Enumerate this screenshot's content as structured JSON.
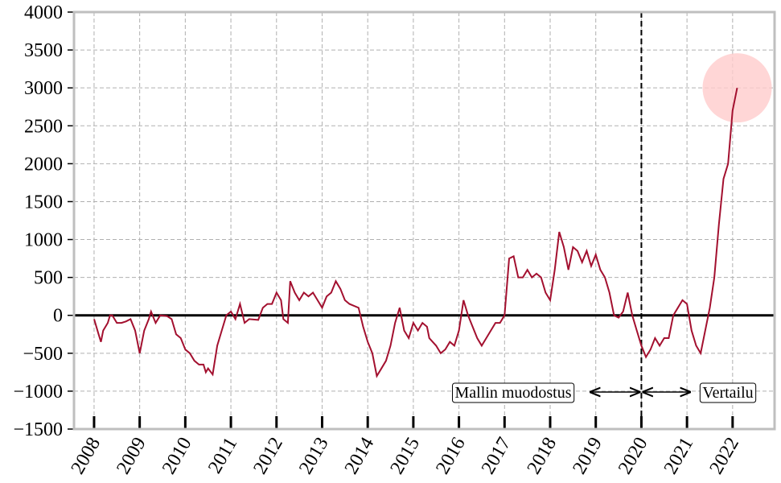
{
  "chart_data": {
    "type": "line",
    "x": [
      2008.0,
      2008.1,
      2008.15,
      2008.2,
      2008.3,
      2008.35,
      2008.4,
      2008.5,
      2008.6,
      2008.7,
      2008.8,
      2008.9,
      2009.0,
      2009.1,
      2009.2,
      2009.25,
      2009.35,
      2009.45,
      2009.6,
      2009.7,
      2009.8,
      2009.9,
      2010.0,
      2010.1,
      2010.2,
      2010.3,
      2010.4,
      2010.45,
      2010.5,
      2010.6,
      2010.7,
      2010.8,
      2010.9,
      2011.0,
      2011.1,
      2011.2,
      2011.3,
      2011.4,
      2011.6,
      2011.7,
      2011.8,
      2011.9,
      2012.0,
      2012.1,
      2012.15,
      2012.25,
      2012.3,
      2012.4,
      2012.5,
      2012.6,
      2012.7,
      2012.8,
      2012.9,
      2013.0,
      2013.1,
      2013.2,
      2013.3,
      2013.4,
      2013.5,
      2013.6,
      2013.8,
      2013.9,
      2014.0,
      2014.1,
      2014.2,
      2014.3,
      2014.4,
      2014.5,
      2014.6,
      2014.7,
      2014.8,
      2014.9,
      2015.0,
      2015.1,
      2015.2,
      2015.3,
      2015.35,
      2015.5,
      2015.6,
      2015.7,
      2015.8,
      2015.9,
      2016.0,
      2016.1,
      2016.2,
      2016.3,
      2016.4,
      2016.5,
      2016.6,
      2016.8,
      2016.9,
      2017.0,
      2017.1,
      2017.2,
      2017.3,
      2017.4,
      2017.5,
      2017.6,
      2017.7,
      2017.8,
      2017.9,
      2018.0,
      2018.1,
      2018.2,
      2018.3,
      2018.4,
      2018.5,
      2018.6,
      2018.7,
      2018.8,
      2018.9,
      2019.0,
      2019.1,
      2019.2,
      2019.3,
      2019.4,
      2019.5,
      2019.6,
      2019.7,
      2019.8,
      2019.9,
      2020.0,
      2020.1,
      2020.2,
      2020.3,
      2020.4,
      2020.5,
      2020.6,
      2020.7,
      2020.8,
      2020.9,
      2021.0,
      2021.1,
      2021.2,
      2021.3,
      2021.4,
      2021.5,
      2021.6,
      2021.7,
      2021.8,
      2021.9,
      2022.0,
      2022.1
    ],
    "series": [
      {
        "color": "#a3102f",
        "values": [
          -50,
          -250,
          -350,
          -200,
          -100,
          0,
          0,
          -100,
          -100,
          -80,
          -50,
          -200,
          -500,
          -200,
          -50,
          50,
          -100,
          0,
          -10,
          -50,
          -250,
          -300,
          -450,
          -500,
          -600,
          -650,
          -650,
          -750,
          -700,
          -780,
          -400,
          -200,
          0,
          50,
          -50,
          150,
          -100,
          -50,
          -60,
          100,
          150,
          150,
          300,
          200,
          -50,
          -100,
          450,
          300,
          200,
          300,
          250,
          300,
          200,
          100,
          250,
          300,
          450,
          350,
          200,
          150,
          100,
          -150,
          -350,
          -500,
          -800,
          -700,
          -600,
          -400,
          -100,
          100,
          -200,
          -300,
          -100,
          -200,
          -100,
          -150,
          -300,
          -400,
          -500,
          -450,
          -350,
          -400,
          -200,
          200,
          0,
          -150,
          -300,
          -400,
          -300,
          -100,
          -100,
          0,
          750,
          780,
          500,
          500,
          600,
          500,
          550,
          500,
          300,
          200,
          600,
          1100,
          900,
          600,
          900,
          850,
          700,
          850,
          650,
          800,
          600,
          500,
          300,
          0,
          -30,
          50,
          300,
          0,
          -200,
          -400,
          -550,
          -450,
          -300,
          -400,
          -300,
          -300,
          0,
          100,
          200,
          150,
          -200,
          -400,
          -500,
          -200,
          100,
          500,
          1200,
          1800,
          2000,
          2700,
          3000
        ]
      }
    ],
    "xlim": [
      2007.56,
      2022.92
    ],
    "xticks": [
      2008,
      2009,
      2010,
      2011,
      2012,
      2013,
      2014,
      2015,
      2016,
      2017,
      2018,
      2019,
      2020,
      2021,
      2022
    ],
    "ylim": [
      -1500,
      4000
    ],
    "yticks": [
      {
        "value": -1500,
        "label": "−1500"
      },
      {
        "value": -1000,
        "label": "−1000"
      },
      {
        "value": -500,
        "label": "−500"
      },
      0,
      500,
      1000,
      1500,
      2000,
      2500,
      3000,
      3500,
      4000
    ],
    "grid": true,
    "hline": 0,
    "vline": 2020,
    "annotations": [
      "Mallin muodostus",
      "Vertailu"
    ],
    "highlight_color": "#ffcccc"
  }
}
